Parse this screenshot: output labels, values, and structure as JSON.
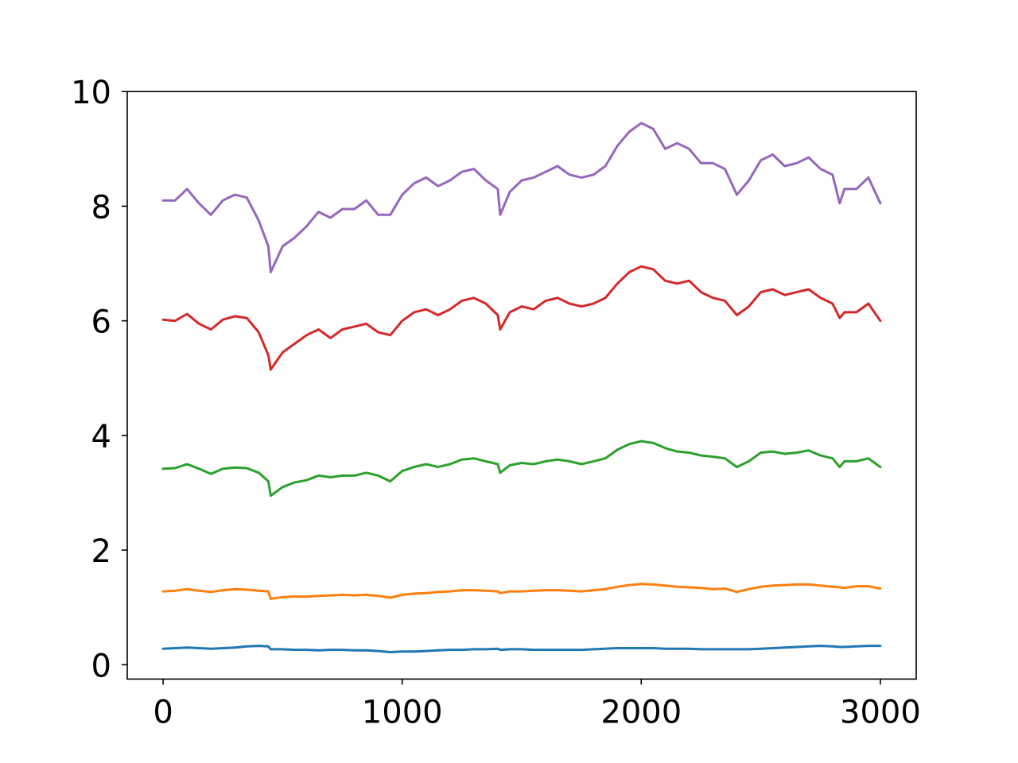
{
  "chart_data": {
    "type": "line",
    "title": "",
    "xlabel": "",
    "ylabel": "",
    "xlim": [
      -150,
      3150
    ],
    "ylim": [
      -0.25,
      10.0
    ],
    "x_ticks": [
      0,
      1000,
      2000,
      3000
    ],
    "y_ticks": [
      0,
      2,
      4,
      6,
      8,
      10
    ],
    "x_tick_labels": [
      "0",
      "1000",
      "2000",
      "3000"
    ],
    "y_tick_labels": [
      "0",
      "2",
      "4",
      "6",
      "8",
      "10"
    ],
    "grid": false,
    "legend": "none",
    "x": [
      0,
      50,
      100,
      150,
      200,
      250,
      300,
      350,
      400,
      440,
      450,
      500,
      550,
      600,
      650,
      700,
      750,
      800,
      850,
      900,
      950,
      1000,
      1050,
      1100,
      1150,
      1200,
      1250,
      1300,
      1350,
      1400,
      1410,
      1450,
      1500,
      1550,
      1600,
      1650,
      1700,
      1750,
      1800,
      1850,
      1900,
      1950,
      2000,
      2050,
      2100,
      2150,
      2200,
      2250,
      2300,
      2350,
      2400,
      2450,
      2500,
      2550,
      2600,
      2650,
      2700,
      2750,
      2800,
      2830,
      2850,
      2900,
      2950,
      3000
    ],
    "series": [
      {
        "color": "#1f77b4",
        "values": [
          0.28,
          0.29,
          0.3,
          0.29,
          0.28,
          0.29,
          0.3,
          0.32,
          0.33,
          0.32,
          0.27,
          0.27,
          0.26,
          0.26,
          0.25,
          0.26,
          0.26,
          0.25,
          0.25,
          0.24,
          0.22,
          0.23,
          0.23,
          0.24,
          0.25,
          0.26,
          0.26,
          0.27,
          0.27,
          0.28,
          0.26,
          0.27,
          0.27,
          0.26,
          0.26,
          0.26,
          0.26,
          0.26,
          0.27,
          0.28,
          0.29,
          0.29,
          0.29,
          0.29,
          0.28,
          0.28,
          0.28,
          0.27,
          0.27,
          0.27,
          0.27,
          0.27,
          0.28,
          0.29,
          0.3,
          0.31,
          0.32,
          0.33,
          0.32,
          0.31,
          0.31,
          0.32,
          0.33,
          0.33
        ]
      },
      {
        "color": "#ff7f0e",
        "values": [
          1.28,
          1.29,
          1.32,
          1.29,
          1.27,
          1.3,
          1.32,
          1.31,
          1.29,
          1.28,
          1.15,
          1.18,
          1.19,
          1.19,
          1.2,
          1.21,
          1.22,
          1.21,
          1.22,
          1.2,
          1.17,
          1.22,
          1.24,
          1.25,
          1.27,
          1.28,
          1.3,
          1.3,
          1.29,
          1.28,
          1.25,
          1.28,
          1.28,
          1.29,
          1.3,
          1.3,
          1.29,
          1.28,
          1.3,
          1.32,
          1.36,
          1.39,
          1.41,
          1.4,
          1.38,
          1.36,
          1.35,
          1.34,
          1.32,
          1.33,
          1.27,
          1.32,
          1.36,
          1.38,
          1.39,
          1.4,
          1.4,
          1.38,
          1.36,
          1.35,
          1.34,
          1.37,
          1.37,
          1.33
        ]
      },
      {
        "color": "#2ca02c",
        "values": [
          3.42,
          3.43,
          3.5,
          3.42,
          3.33,
          3.42,
          3.44,
          3.43,
          3.35,
          3.2,
          2.95,
          3.1,
          3.18,
          3.22,
          3.3,
          3.27,
          3.3,
          3.3,
          3.35,
          3.3,
          3.2,
          3.38,
          3.45,
          3.5,
          3.45,
          3.5,
          3.58,
          3.6,
          3.55,
          3.5,
          3.35,
          3.48,
          3.52,
          3.5,
          3.55,
          3.58,
          3.55,
          3.5,
          3.55,
          3.6,
          3.75,
          3.85,
          3.9,
          3.87,
          3.78,
          3.72,
          3.7,
          3.65,
          3.63,
          3.6,
          3.45,
          3.55,
          3.7,
          3.72,
          3.68,
          3.7,
          3.74,
          3.65,
          3.6,
          3.45,
          3.55,
          3.55,
          3.6,
          3.45
        ]
      },
      {
        "color": "#d62728",
        "values": [
          6.02,
          6.0,
          6.12,
          5.95,
          5.85,
          6.02,
          6.08,
          6.05,
          5.8,
          5.4,
          5.15,
          5.45,
          5.6,
          5.75,
          5.85,
          5.7,
          5.85,
          5.9,
          5.95,
          5.8,
          5.75,
          6.0,
          6.15,
          6.2,
          6.1,
          6.2,
          6.35,
          6.4,
          6.3,
          6.1,
          5.85,
          6.15,
          6.25,
          6.2,
          6.35,
          6.4,
          6.3,
          6.25,
          6.3,
          6.4,
          6.65,
          6.85,
          6.95,
          6.9,
          6.7,
          6.65,
          6.7,
          6.5,
          6.4,
          6.35,
          6.1,
          6.25,
          6.5,
          6.55,
          6.45,
          6.5,
          6.55,
          6.4,
          6.3,
          6.05,
          6.15,
          6.15,
          6.3,
          6.0
        ]
      },
      {
        "color": "#9467bd",
        "values": [
          8.1,
          8.1,
          8.3,
          8.05,
          7.85,
          8.1,
          8.2,
          8.15,
          7.75,
          7.3,
          6.85,
          7.3,
          7.45,
          7.65,
          7.9,
          7.8,
          7.95,
          7.95,
          8.1,
          7.85,
          7.85,
          8.2,
          8.4,
          8.5,
          8.35,
          8.45,
          8.6,
          8.65,
          8.45,
          8.3,
          7.85,
          8.25,
          8.45,
          8.5,
          8.6,
          8.7,
          8.55,
          8.5,
          8.55,
          8.7,
          9.05,
          9.3,
          9.45,
          9.35,
          9.0,
          9.1,
          9.0,
          8.75,
          8.75,
          8.65,
          8.2,
          8.45,
          8.8,
          8.9,
          8.7,
          8.75,
          8.85,
          8.65,
          8.55,
          8.05,
          8.3,
          8.3,
          8.5,
          8.05
        ]
      }
    ]
  }
}
